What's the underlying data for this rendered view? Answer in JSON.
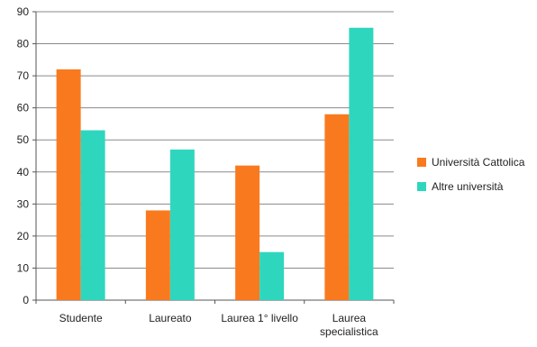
{
  "chart_data": {
    "type": "bar",
    "title": "",
    "xlabel": "",
    "ylabel": "",
    "ylim": [
      0,
      90
    ],
    "yticks": [
      0,
      10,
      20,
      30,
      40,
      50,
      60,
      70,
      80,
      90
    ],
    "grid": true,
    "legend_position": "right",
    "categories": [
      [
        "Studente"
      ],
      [
        "Laureato"
      ],
      [
        "Laurea 1° livello"
      ],
      [
        "Laurea",
        "specialistica"
      ]
    ],
    "series": [
      {
        "name": "Università Cattolica",
        "color": "#F97A1E",
        "values": [
          72,
          28,
          42,
          58
        ]
      },
      {
        "name": "Altre università",
        "color": "#2FD6BE",
        "values": [
          53,
          47,
          15,
          85
        ]
      }
    ]
  }
}
